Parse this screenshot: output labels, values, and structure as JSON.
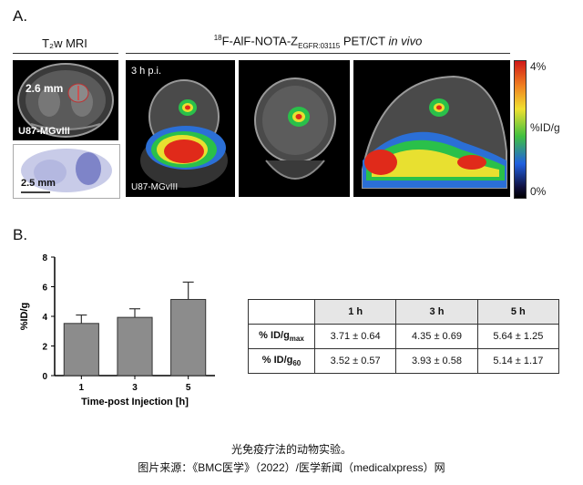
{
  "panel_a": {
    "letter": "A.",
    "mri_header": "T₂w MRI",
    "pet_header": {
      "iso": "18",
      "main": "F-AlF-NOTA-Z",
      "sub": "EGFR:03115",
      "suffix": " PET/CT ",
      "italic": "in vivo"
    },
    "mri_scale": "2.6 mm",
    "mri_label": "U87-MGvIII",
    "histo_scale": "2.5 mm",
    "pet_time": "3 h p.i.",
    "pet_label": "U87-MGvIII",
    "colorbar": {
      "max": "4%",
      "unit": "%ID/g",
      "min": "0%"
    }
  },
  "panel_b": {
    "letter": "B.",
    "chart_data": {
      "type": "bar",
      "categories": [
        "1",
        "3",
        "5"
      ],
      "values": [
        3.52,
        3.93,
        5.14
      ],
      "errors": [
        0.57,
        0.58,
        1.17
      ],
      "ylabel": "%ID/g",
      "xlabel": "Time-post Injection [h]",
      "ylim": [
        0,
        8
      ],
      "yticks": [
        "0",
        "2",
        "4",
        "6",
        "8"
      ],
      "bar_color": "#8c8c8c",
      "grid": false
    },
    "table": {
      "headers": [
        "1 h",
        "3 h",
        "5 h"
      ],
      "rows": [
        {
          "label": "% ID/g",
          "label_sub": "max",
          "values": [
            "3.71 ± 0.64",
            "4.35 ± 0.69",
            "5.64 ± 1.25"
          ]
        },
        {
          "label": "% ID/g",
          "label_sub": "60",
          "values": [
            "3.52 ± 0.57",
            "3.93 ± 0.58",
            "5.14 ± 1.17"
          ]
        }
      ]
    }
  },
  "caption": {
    "line1": "光免疫疗法的动物实验。",
    "line2": "图片来源：《BMC医学》（2022）/医学新闻（medicalxpress）网"
  }
}
